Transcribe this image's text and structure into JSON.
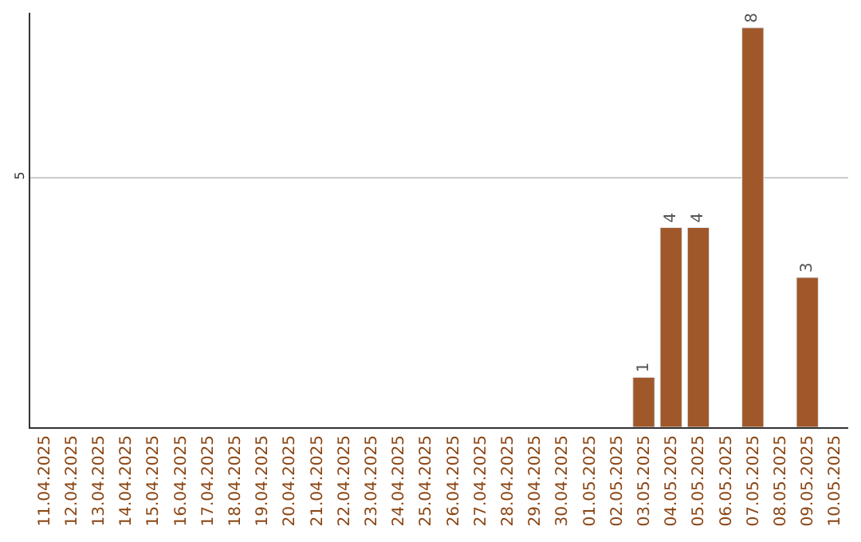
{
  "chart_data": {
    "type": "bar",
    "categories": [
      "11.04.2025",
      "12.04.2025",
      "13.04.2025",
      "14.04.2025",
      "15.04.2025",
      "16.04.2025",
      "17.04.2025",
      "18.04.2025",
      "19.04.2025",
      "20.04.2025",
      "21.04.2025",
      "22.04.2025",
      "23.04.2025",
      "24.04.2025",
      "25.04.2025",
      "26.04.2025",
      "27.04.2025",
      "28.04.2025",
      "29.04.2025",
      "30.04.2025",
      "01.05.2025",
      "02.05.2025",
      "03.05.2025",
      "04.05.2025",
      "05.05.2025",
      "06.05.2025",
      "07.05.2025",
      "08.05.2025",
      "09.05.2025",
      "10.05.2025"
    ],
    "values": [
      null,
      null,
      null,
      null,
      null,
      null,
      null,
      null,
      null,
      null,
      null,
      null,
      null,
      null,
      null,
      null,
      null,
      null,
      null,
      null,
      null,
      null,
      1,
      4,
      4,
      null,
      8,
      null,
      3,
      null
    ],
    "color": "#a0582a",
    "ylim": [
      0,
      8.3
    ],
    "yticks": [
      5
    ],
    "grid": "y",
    "data_labels": true,
    "legend": false
  }
}
